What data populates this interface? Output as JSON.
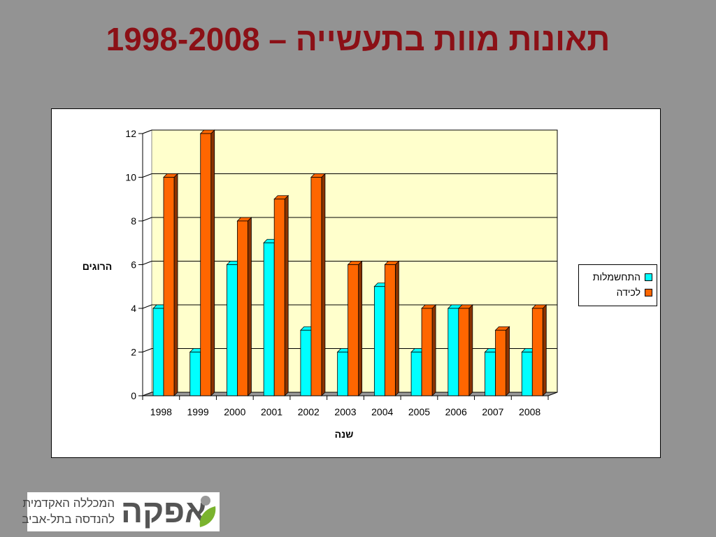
{
  "title": "תאונות מוות בתעשייה – 1998-2008",
  "chart_data": {
    "type": "bar",
    "categories": [
      "1998",
      "1999",
      "2000",
      "2001",
      "2002",
      "2003",
      "2004",
      "2005",
      "2006",
      "2007",
      "2008"
    ],
    "series": [
      {
        "name": "התחשמלות",
        "color": "#00ffff",
        "side": "#009999",
        "values": [
          4,
          2,
          6,
          7,
          3,
          2,
          5,
          2,
          4,
          2,
          2
        ]
      },
      {
        "name": "לכידה",
        "color": "#ff6600",
        "side": "#8a3300",
        "values": [
          10,
          12,
          8,
          9,
          10,
          6,
          6,
          4,
          4,
          3,
          4
        ]
      }
    ],
    "xlabel": "שנה",
    "ylabel": "הרוגים",
    "ylim": [
      0,
      12
    ],
    "yticks": [
      "0",
      "2",
      "4",
      "6",
      "8",
      "10",
      "12"
    ],
    "grid": true,
    "plot_background": "#ffffcc",
    "legend_position": "right"
  },
  "logo": {
    "brand": "אפקה",
    "line1": "המכללה האקדמית",
    "line2": "להנדסה בתל-אביב"
  }
}
